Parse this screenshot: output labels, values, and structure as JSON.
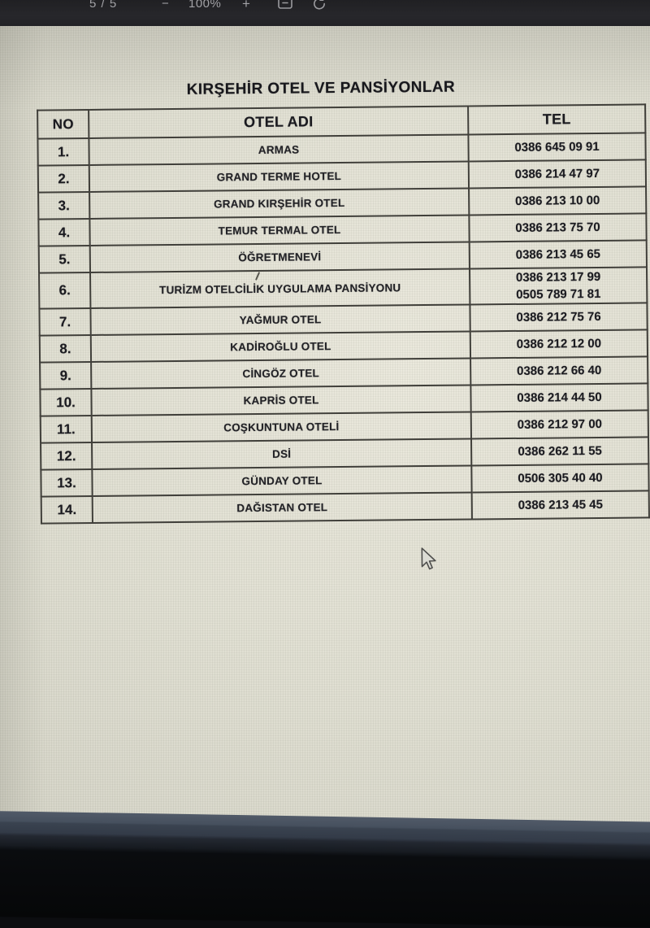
{
  "viewer_toolbar": {
    "page_current": "5",
    "page_separator": "/",
    "page_total": "5",
    "zoom_out_label": "−",
    "zoom_level": "100%",
    "zoom_in_label": "+",
    "fit_icon": "fit-to-page",
    "rotate_icon": "rotate-page"
  },
  "doc": {
    "title": "KIRŞEHİR OTEL VE PANSİYONLAR",
    "table": {
      "headers": {
        "no": "NO",
        "name": "OTEL ADI",
        "tel": "TEL"
      },
      "rows": [
        {
          "no": "1.",
          "name": "ARMAS",
          "tel": [
            "0386 645 09 91"
          ]
        },
        {
          "no": "2.",
          "name": "GRAND TERME HOTEL",
          "tel": [
            "0386 214 47 97"
          ]
        },
        {
          "no": "3.",
          "name": "GRAND KIRŞEHİR OTEL",
          "tel": [
            "0386 213 10 00"
          ]
        },
        {
          "no": "4.",
          "name": "TEMUR TERMAL OTEL",
          "tel": [
            "0386 213 75 70"
          ]
        },
        {
          "no": "5.",
          "name": "ÖĞRETMENEVİ",
          "tel": [
            "0386 213 45 65"
          ]
        },
        {
          "no": "6.",
          "name": "TURİZM OTELCİLİK UYGULAMA PANSİYONU",
          "tel": [
            "0386 213 17 99",
            "0505 789 71 81"
          ]
        },
        {
          "no": "7.",
          "name": "YAĞMUR OTEL",
          "tel": [
            "0386 212 75 76"
          ]
        },
        {
          "no": "8.",
          "name": "KADİROĞLU OTEL",
          "tel": [
            "0386 212 12 00"
          ]
        },
        {
          "no": "9.",
          "name": "CİNGÖZ OTEL",
          "tel": [
            "0386 212 66 40"
          ]
        },
        {
          "no": "10.",
          "name": "KAPRİS OTEL",
          "tel": [
            "0386 214 44 50"
          ]
        },
        {
          "no": "11.",
          "name": "COŞKUNTUNA OTELİ",
          "tel": [
            "0386 212 97 00"
          ]
        },
        {
          "no": "12.",
          "name": "DSİ",
          "tel": [
            "0386 262 11 55"
          ]
        },
        {
          "no": "13.",
          "name": "GÜNDAY OTEL",
          "tel": [
            "0506 305 40 40"
          ]
        },
        {
          "no": "14.",
          "name": "DAĞISTAN OTEL",
          "tel": [
            "0386 213 45 45"
          ]
        }
      ]
    }
  },
  "cursor": "arrow-pointer",
  "colors": {
    "toolbar_bg": "#242428",
    "toolbar_text": "#a2a2a6",
    "page_bg": "#dedcd0",
    "table_border": "#403f3a",
    "text": "#1d1d21",
    "bezel": "#3a4350"
  }
}
